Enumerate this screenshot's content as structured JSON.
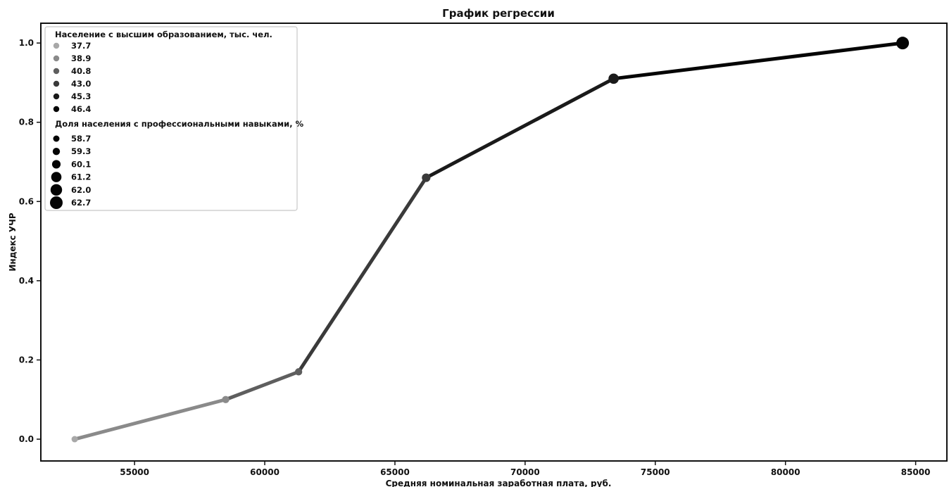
{
  "chart_data": {
    "type": "line",
    "title": "График регрессии",
    "xlabel": "Средняя номинальная заработная плата, руб.",
    "ylabel": "Индекс УЧР",
    "xlim": [
      51400,
      86200
    ],
    "ylim": [
      -0.055,
      1.05
    ],
    "xticks": [
      55000,
      60000,
      65000,
      70000,
      75000,
      80000,
      85000
    ],
    "yticks": [
      0.0,
      0.2,
      0.4,
      0.6,
      0.8,
      1.0
    ],
    "xtick_labels": [
      "55000",
      "60000",
      "65000",
      "70000",
      "75000",
      "80000",
      "85000"
    ],
    "ytick_labels": [
      "0.0",
      "0.2",
      "0.4",
      "0.6",
      "0.8",
      "1.0"
    ],
    "points": [
      {
        "x": 52700,
        "y": 0.0,
        "education": 37.7,
        "skills": 58.7
      },
      {
        "x": 58500,
        "y": 0.1,
        "education": 38.9,
        "skills": 59.3
      },
      {
        "x": 61300,
        "y": 0.17,
        "education": 40.8,
        "skills": 59.3
      },
      {
        "x": 66200,
        "y": 0.66,
        "education": 43.0,
        "skills": 60.1
      },
      {
        "x": 73400,
        "y": 0.91,
        "education": 45.3,
        "skills": 61.2
      },
      {
        "x": 84500,
        "y": 1.0,
        "education": 46.4,
        "skills": 62.7
      }
    ],
    "legend": {
      "position": "upper-left",
      "hue_title": "Население с высшим образованием, тыс. чел.",
      "hue_entries": [
        {
          "label": "37.7",
          "color": "#a8a8a8"
        },
        {
          "label": "38.9",
          "color": "#8a8a8a"
        },
        {
          "label": "40.8",
          "color": "#5e5e5e"
        },
        {
          "label": "43.0",
          "color": "#3a3a3a"
        },
        {
          "label": "45.3",
          "color": "#1a1a1a"
        },
        {
          "label": "46.4",
          "color": "#050505"
        }
      ],
      "size_title": "Доля населения с профессиональными навыками, %",
      "size_entries": [
        {
          "label": "58.7",
          "size": 58.7
        },
        {
          "label": "59.3",
          "size": 59.3
        },
        {
          "label": "60.1",
          "size": 60.1
        },
        {
          "label": "61.2",
          "size": 61.2
        },
        {
          "label": "62.0",
          "size": 62.0
        },
        {
          "label": "62.7",
          "size": 62.7
        }
      ]
    },
    "grid": false
  }
}
